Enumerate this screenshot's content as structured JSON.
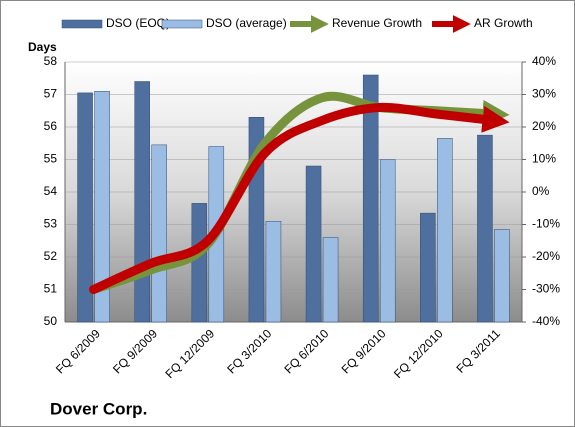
{
  "chart_data": {
    "type": "bar_line",
    "title": "Dover Corp.",
    "y_label": "Days",
    "categories": [
      "FQ 6/2009",
      "FQ 9/2009",
      "FQ 12/2009",
      "FQ 3/2010",
      "FQ 6/2010",
      "FQ 9/2010",
      "FQ 12/2010",
      "FQ 3/2011"
    ],
    "series": [
      {
        "name": "DSO (EOQ)",
        "type": "bar",
        "color": "#4f6f9f",
        "values": [
          57.05,
          57.4,
          53.65,
          56.3,
          54.8,
          57.6,
          53.35,
          55.75
        ]
      },
      {
        "name": "DSO (average)",
        "type": "bar",
        "color": "#9cbde3",
        "values": [
          57.1,
          55.45,
          55.4,
          53.1,
          52.6,
          55.0,
          55.65,
          52.85
        ]
      },
      {
        "name": "Revenue Growth",
        "type": "line",
        "axis": "y2",
        "color": "#77933c",
        "values": [
          -30,
          -24,
          -16,
          15,
          29,
          26,
          25,
          24
        ]
      },
      {
        "name": "AR Growth",
        "type": "line",
        "axis": "y2",
        "color": "#c00000",
        "values": [
          -30,
          -22,
          -15,
          12,
          22,
          26,
          24,
          22
        ]
      }
    ],
    "ylim": [
      50,
      58
    ],
    "yticks": [
      50,
      51,
      52,
      53,
      54,
      55,
      56,
      57,
      58
    ],
    "y2lim": [
      -40,
      40
    ],
    "y2ticks": [
      {
        "value": -40,
        "label": "-40%"
      },
      {
        "value": -30,
        "label": "-30%"
      },
      {
        "value": -20,
        "label": "-20%"
      },
      {
        "value": -10,
        "label": "-10%"
      },
      {
        "value": 0,
        "label": "0%"
      },
      {
        "value": 10,
        "label": "10%"
      },
      {
        "value": 20,
        "label": "20%"
      },
      {
        "value": 30,
        "label": "30%"
      },
      {
        "value": 40,
        "label": "40%"
      }
    ],
    "grid": true
  }
}
